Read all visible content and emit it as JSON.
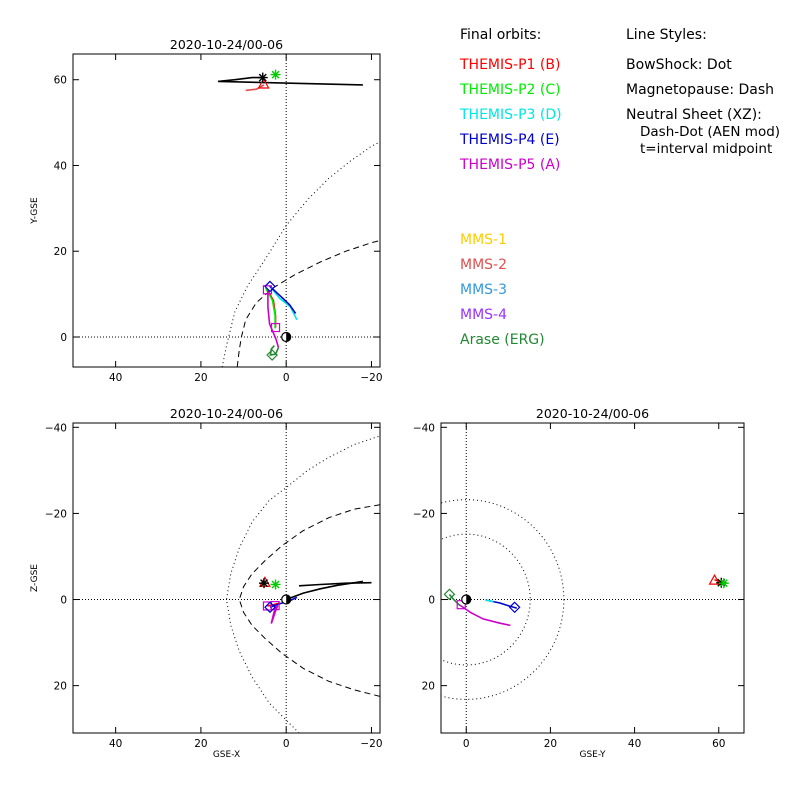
{
  "legend": {
    "orbits_title": "Final orbits:",
    "orbits": [
      {
        "label": "THEMIS-P1 (B)",
        "color": "#ff0000"
      },
      {
        "label": "THEMIS-P2 (C)",
        "color": "#00ee00"
      },
      {
        "label": "THEMIS-P3 (D)",
        "color": "#00e5e5"
      },
      {
        "label": "THEMIS-P4 (E)",
        "color": "#0000cc"
      },
      {
        "label": "THEMIS-P5 (A)",
        "color": "#cc00cc"
      }
    ],
    "styles_title": "Line Styles:",
    "styles": [
      "BowShock: Dot",
      "Magnetopause: Dash",
      "Neutral Sheet (XZ):",
      "  Dash-Dot (AEN mod)",
      "  t=interval midpoint"
    ],
    "other": [
      {
        "label": "MMS-1",
        "color": "#ffcc00"
      },
      {
        "label": "MMS-2",
        "color": "#e05050"
      },
      {
        "label": "MMS-3",
        "color": "#3399dd"
      },
      {
        "label": "MMS-4",
        "color": "#9933ff"
      },
      {
        "label": "Arase (ERG)",
        "color": "#228833"
      }
    ]
  },
  "chart_data": [
    {
      "type": "scatter",
      "title": "2020-10-24/00-06",
      "xlabel": "",
      "ylabel": "Y-GSE",
      "xlim": [
        50,
        -22
      ],
      "ylim": [
        66,
        -7
      ],
      "xticks": [
        40,
        20,
        0,
        -20
      ],
      "yticks": [
        0,
        20,
        40,
        60
      ],
      "x_tick_labels": [
        "40",
        "20",
        "0",
        "−20"
      ],
      "y_tick_labels": [
        "0",
        "20",
        "40",
        "60"
      ],
      "zero_lines": true,
      "boundaries": [
        {
          "kind": "bowshock",
          "style": "dotted",
          "points": [
            [
              15.0,
              -7
            ],
            [
              14.0,
              -2
            ],
            [
              13.5,
              0
            ],
            [
              12,
              6
            ],
            [
              9,
              12
            ],
            [
              5,
              18
            ],
            [
              0,
              26
            ],
            [
              -5,
              32
            ],
            [
              -10,
              37
            ],
            [
              -15,
              41
            ],
            [
              -20,
              44.5
            ],
            [
              -22,
              45.5
            ]
          ]
        },
        {
          "kind": "magnetopause",
          "style": "dashed",
          "points": [
            [
              11.5,
              -7
            ],
            [
              11,
              -3
            ],
            [
              10.5,
              0
            ],
            [
              9.5,
              4
            ],
            [
              7,
              8
            ],
            [
              3,
              11.5
            ],
            [
              -2,
              14.5
            ],
            [
              -8,
              17.5
            ],
            [
              -14,
              20
            ],
            [
              -20,
              22
            ],
            [
              -22,
              22.5
            ]
          ]
        }
      ],
      "series": [
        {
          "name": "THEMIS-P1 (B)",
          "color": "#ff0000",
          "points": [
            [
              4.4,
              11.0
            ],
            [
              3.0,
              8.5
            ],
            [
              2.5,
              5.0
            ],
            [
              2.5,
              2.2
            ]
          ]
        },
        {
          "name": "THEMIS-P2 (C)",
          "color": "#00ee00",
          "points": [
            [
              4.8,
              11.4
            ],
            [
              3.2,
              8.5
            ],
            [
              2.6,
              5.0
            ],
            [
              2.6,
              2.0
            ]
          ]
        },
        {
          "name": "THEMIS-P3 (D)",
          "color": "#00e5e5",
          "points": [
            [
              4.0,
              12.0
            ],
            [
              1.5,
              9.0
            ],
            [
              -1.0,
              7.0
            ],
            [
              -2.5,
              4.0
            ]
          ]
        },
        {
          "name": "THEMIS-P4 (E)",
          "color": "#0000cc",
          "points": [
            [
              3.8,
              11.8
            ],
            [
              1.2,
              9.4
            ],
            [
              -0.8,
              7.5
            ],
            [
              -2.2,
              5.5
            ]
          ]
        },
        {
          "name": "THEMIS-P5 (A)",
          "color": "#cc00cc",
          "points": [
            [
              4.3,
              10.9
            ],
            [
              4.3,
              7.0
            ],
            [
              3.9,
              3.0
            ],
            [
              2.4,
              -0.5
            ],
            [
              1.8,
              -2.5
            ]
          ]
        },
        {
          "name": "P2-loop",
          "color": "#228833",
          "points": [
            [
              1.8,
              -2.5
            ],
            [
              2.5,
              -4.0
            ],
            [
              3.7,
              -4.2
            ],
            [
              3.5,
              -2.8
            ],
            [
              2.8,
              -2.0
            ]
          ]
        },
        {
          "name": "MMS-2",
          "color": "#e05050",
          "points": [
            [
              5.2,
              58.8
            ],
            [
              7.0,
              57.8
            ],
            [
              9.5,
              57.5
            ]
          ]
        },
        {
          "name": "MMS-1",
          "color": "#000000",
          "points": [
            [
              5.5,
              60.5
            ],
            [
              8,
              60.5
            ],
            [
              12,
              60.0
            ],
            [
              16,
              59.6
            ],
            [
              -18,
              58.8
            ]
          ]
        }
      ],
      "markers": [
        {
          "x": 2.5,
          "y": 2.2,
          "shape": "square",
          "color": "#cc00cc"
        },
        {
          "x": 4.4,
          "y": 11.0,
          "shape": "square",
          "color": "#cc00cc"
        },
        {
          "x": 3.8,
          "y": 11.8,
          "shape": "diamond",
          "color": "#0000cc"
        },
        {
          "x": 3.3,
          "y": -4.2,
          "shape": "diamond",
          "color": "#228833"
        },
        {
          "x": 5.3,
          "y": 59.0,
          "shape": "triangle",
          "color": "#ff0000"
        },
        {
          "x": 5.5,
          "y": 60.5,
          "shape": "star",
          "color": "#000000"
        },
        {
          "x": 2.5,
          "y": 61.2,
          "shape": "star",
          "color": "#00cc00"
        },
        {
          "x": 0,
          "y": 0,
          "shape": "earth",
          "color": "#000000"
        }
      ]
    },
    {
      "type": "scatter",
      "title": "2020-10-24/00-06",
      "xlabel": "GSE-X",
      "ylabel": "Z-GSE",
      "xlim": [
        50,
        -22
      ],
      "ylim": [
        -41,
        31
      ],
      "xticks": [
        40,
        20,
        0,
        -20
      ],
      "yticks": [
        20,
        0,
        -20,
        -40
      ],
      "x_tick_labels": [
        "40",
        "20",
        "0",
        "−20"
      ],
      "y_tick_labels": [
        "20",
        "0",
        "−20",
        "−40"
      ],
      "zero_lines": true,
      "boundaries": [
        {
          "kind": "bowshock",
          "style": "dotted",
          "points": [
            [
              -3,
              31
            ],
            [
              0,
              28
            ],
            [
              4,
              24
            ],
            [
              8,
              18
            ],
            [
              11,
              12
            ],
            [
              13,
              6
            ],
            [
              14,
              0
            ],
            [
              13,
              -6
            ],
            [
              11,
              -12
            ],
            [
              8,
              -18
            ],
            [
              4,
              -23
            ],
            [
              0,
              -26
            ],
            [
              -5,
              -30
            ],
            [
              -10,
              -33
            ],
            [
              -16,
              -36
            ],
            [
              -22,
              -38
            ]
          ]
        },
        {
          "kind": "magnetopause",
          "style": "dashed",
          "points": [
            [
              -22,
              22.5
            ],
            [
              -16,
              21
            ],
            [
              -10,
              19
            ],
            [
              -4,
              16
            ],
            [
              1,
              12.5
            ],
            [
              5,
              9
            ],
            [
              8,
              6
            ],
            [
              10,
              3
            ],
            [
              11,
              0
            ],
            [
              10,
              -3
            ],
            [
              8,
              -6
            ],
            [
              5,
              -9
            ],
            [
              1,
              -12.5
            ],
            [
              -4,
              -16
            ],
            [
              -10,
              -19
            ],
            [
              -16,
              -21
            ],
            [
              -22,
              -22
            ]
          ]
        }
      ],
      "series": [
        {
          "name": "THEMIS-P1 (B)",
          "color": "#ff0000",
          "points": [
            [
              4.4,
              1.5
            ],
            [
              3,
              1.2
            ],
            [
              1.5,
              0.8
            ]
          ]
        },
        {
          "name": "THEMIS-P4 (E)",
          "color": "#0000cc",
          "points": [
            [
              3.8,
              1.8
            ],
            [
              1.5,
              1.0
            ],
            [
              -1,
              0.2
            ],
            [
              -2.5,
              -0.5
            ]
          ]
        },
        {
          "name": "THEMIS-P5 (A)",
          "color": "#cc00cc",
          "points": [
            [
              2.4,
              1.4
            ],
            [
              3.0,
              3.5
            ],
            [
              3.5,
              5.6
            ],
            [
              2.6,
              3.0
            ],
            [
              2.0,
              1.4
            ]
          ]
        },
        {
          "name": "black-trace",
          "color": "#000000",
          "points": [
            [
              0,
              0
            ],
            [
              -4,
              -1.5
            ],
            [
              -8,
              -2.5
            ],
            [
              -12,
              -3.3
            ],
            [
              -18,
              -4.2
            ]
          ]
        },
        {
          "name": "black-trace-2",
          "color": "#000000",
          "points": [
            [
              -3,
              -3.2
            ],
            [
              -8,
              -3.5
            ],
            [
              -14,
              -3.8
            ],
            [
              -20,
              -3.9
            ]
          ]
        }
      ],
      "markers": [
        {
          "x": 4.4,
          "y": 1.5,
          "shape": "square",
          "color": "#cc00cc"
        },
        {
          "x": 2.6,
          "y": 1.4,
          "shape": "square",
          "color": "#cc00cc"
        },
        {
          "x": 3.8,
          "y": 1.8,
          "shape": "diamond",
          "color": "#0000cc"
        },
        {
          "x": 5.0,
          "y": -4.0,
          "shape": "triangle",
          "color": "#ff0000"
        },
        {
          "x": 5.2,
          "y": -3.8,
          "shape": "star",
          "color": "#000000"
        },
        {
          "x": 2.5,
          "y": -3.5,
          "shape": "star",
          "color": "#00cc00"
        },
        {
          "x": 0,
          "y": 0,
          "shape": "earth",
          "color": "#000000"
        }
      ]
    },
    {
      "type": "scatter",
      "title": "2020-10-24/00-06",
      "xlabel": "GSE-Y",
      "ylabel": "",
      "xlim": [
        -6,
        66
      ],
      "ylim": [
        -41,
        31
      ],
      "xticks": [
        0,
        20,
        40,
        60
      ],
      "yticks": [
        20,
        0,
        -20,
        -40
      ],
      "x_tick_labels": [
        "0",
        "20",
        "40",
        "60"
      ],
      "y_tick_labels": [
        "20",
        "0",
        "−20",
        "−40"
      ],
      "zero_lines": true,
      "boundaries": [
        {
          "kind": "bowshock-circle",
          "style": "dotted",
          "radius": 23.2
        },
        {
          "kind": "magnetopause-circle",
          "style": "dotted",
          "radius": 15.2
        }
      ],
      "series": [
        {
          "name": "THEMIS-P5 (A)",
          "color": "#cc00cc",
          "points": [
            [
              -1.5,
              1.3
            ],
            [
              1,
              3
            ],
            [
              4,
              4.5
            ],
            [
              8,
              5.5
            ],
            [
              10.5,
              6.0
            ]
          ]
        },
        {
          "name": "THEMIS-P4 (E)",
          "color": "#0000cc",
          "points": [
            [
              5,
              0.2
            ],
            [
              8,
              0.8
            ],
            [
              10.5,
              1.6
            ],
            [
              12,
              2.0
            ]
          ]
        },
        {
          "name": "THEMIS-P3 (D)",
          "color": "#00e5e5",
          "points": [
            [
              4.5,
              0.1
            ],
            [
              6.5,
              0.5
            ]
          ]
        },
        {
          "name": "Arase (ERG)",
          "color": "#228833",
          "points": [
            [
              -1.5,
              1.4
            ],
            [
              -3,
              0
            ],
            [
              -4,
              -1.2
            ]
          ]
        },
        {
          "name": "MMS-2",
          "color": "#ff0000",
          "points": [
            [
              59,
              -4.6
            ],
            [
              60.6,
              -3.9
            ]
          ]
        }
      ],
      "markers": [
        {
          "x": -1.2,
          "y": 1.2,
          "shape": "square",
          "color": "#cc00cc"
        },
        {
          "x": -4.0,
          "y": -1.2,
          "shape": "diamond",
          "color": "#228833"
        },
        {
          "x": 11.5,
          "y": 1.8,
          "shape": "diamond",
          "color": "#0000cc"
        },
        {
          "x": 59.0,
          "y": -4.5,
          "shape": "triangle",
          "color": "#ff0000"
        },
        {
          "x": 60.6,
          "y": -3.9,
          "shape": "star",
          "color": "#000000"
        },
        {
          "x": 61.2,
          "y": -3.8,
          "shape": "star",
          "color": "#00cc00"
        },
        {
          "x": 0,
          "y": 0,
          "shape": "earth",
          "color": "#000000"
        }
      ]
    }
  ]
}
